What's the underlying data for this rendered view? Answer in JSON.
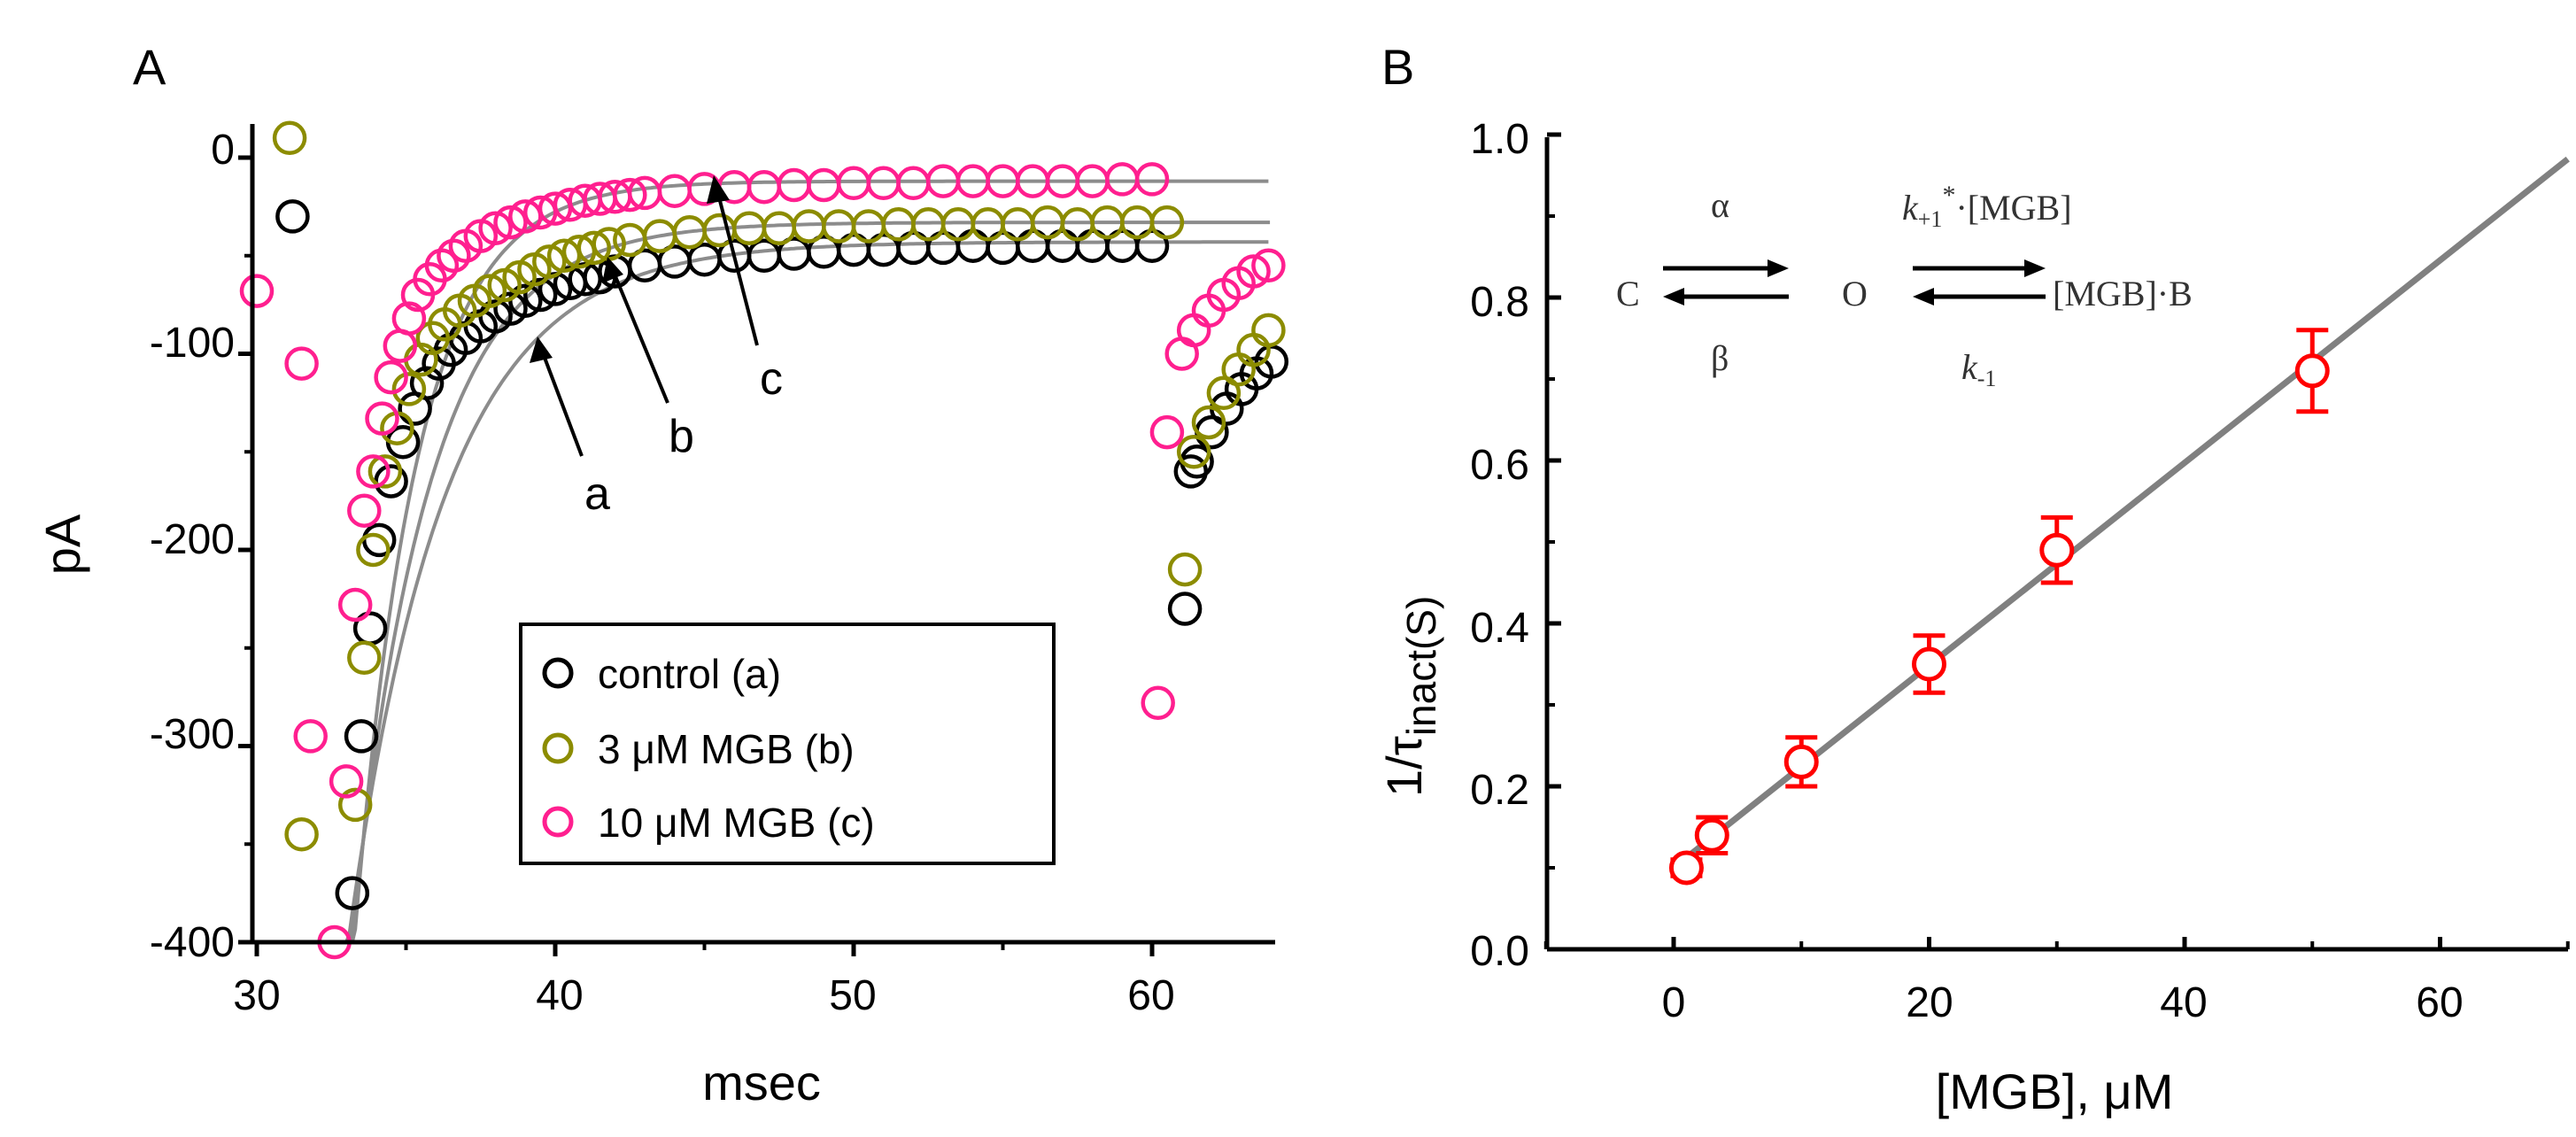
{
  "colors": {
    "control": "#000000",
    "mgb3": "#8c8c00",
    "mgb10": "#ff1f8f",
    "fit": "#8c8c8c",
    "panelB_points": "#ff0000",
    "panelB_line": "#808080"
  },
  "chart_data": [
    {
      "panel_label": "A",
      "type": "scatter",
      "xlabel": "msec",
      "ylabel": "pA",
      "xlim": [
        30,
        64
      ],
      "ylim": [
        -400,
        10
      ],
      "xticks": [
        30,
        40,
        50,
        60
      ],
      "yticks": [
        0,
        -100,
        -200,
        -300,
        -400
      ],
      "xtick_labels": [
        "30",
        "40",
        "50",
        "60"
      ],
      "ytick_labels": [
        "0",
        "-100",
        "-200",
        "-300",
        "-400"
      ],
      "series": [
        {
          "name": "control (a)",
          "color_key": "control",
          "x": [
            31.2,
            33.2,
            33.5,
            33.8,
            34.1,
            34.5,
            34.9,
            35.3,
            35.7,
            36.1,
            36.5,
            37,
            37.5,
            38,
            38.5,
            39,
            39.5,
            40,
            40.5,
            41,
            41.5,
            42,
            43,
            44,
            45,
            46,
            47,
            48,
            49,
            50,
            51,
            52,
            53,
            54,
            55,
            56,
            57,
            58,
            59,
            60,
            61.3,
            61.1,
            61.5,
            62,
            62.5,
            63,
            63.5,
            64
          ],
          "y": [
            -30,
            -375,
            -295,
            -240,
            -195,
            -165,
            -145,
            -128,
            -115,
            -105,
            -98,
            -92,
            -86,
            -81,
            -77,
            -73,
            -70,
            -67,
            -64,
            -62,
            -61,
            -58,
            -55,
            -53,
            -52,
            -50,
            -50,
            -49,
            -48,
            -47,
            -47,
            -46,
            -46,
            -45,
            -46,
            -45,
            -45,
            -45,
            -45,
            -45,
            -160,
            -230,
            -155,
            -140,
            -128,
            -118,
            -110,
            -104
          ]
        },
        {
          "name": "3 μM MGB (b)",
          "color_key": "mgb3",
          "x": [
            31.1,
            31.5,
            33.3,
            33.6,
            33.9,
            34.3,
            34.7,
            35.1,
            35.5,
            35.9,
            36.3,
            36.8,
            37.3,
            37.8,
            38.3,
            38.8,
            39.3,
            39.8,
            40.3,
            40.8,
            41.3,
            41.8,
            42.5,
            43.5,
            44.5,
            45.5,
            46.5,
            47.5,
            48.5,
            49.5,
            50.5,
            51.5,
            52.5,
            53.5,
            54.5,
            55.5,
            56.5,
            57.5,
            58.5,
            59.5,
            60.5,
            61.1,
            61.4,
            61.9,
            62.4,
            62.9,
            63.4,
            63.9
          ],
          "y": [
            10,
            -345,
            -330,
            -255,
            -200,
            -160,
            -138,
            -118,
            -103,
            -92,
            -85,
            -78,
            -73,
            -68,
            -65,
            -61,
            -57,
            -53,
            -50,
            -48,
            -46,
            -44,
            -42,
            -40,
            -38,
            -37,
            -36,
            -36,
            -35,
            -35,
            -35,
            -34,
            -34,
            -34,
            -34,
            -34,
            -33,
            -34,
            -33,
            -33,
            -33,
            -210,
            -150,
            -135,
            -120,
            -108,
            -98,
            -88
          ]
        },
        {
          "name": "10 μM MGB (c)",
          "color_key": "mgb10",
          "x": [
            30,
            31.5,
            31.8,
            32.6,
            33.0,
            33.3,
            33.6,
            33.9,
            34.2,
            34.5,
            34.8,
            35.1,
            35.4,
            35.8,
            36.2,
            36.6,
            37,
            37.5,
            38,
            38.5,
            39,
            39.5,
            40,
            40.5,
            41,
            41.5,
            42,
            42.5,
            43,
            44,
            45,
            46,
            47,
            48,
            49,
            50,
            51,
            52,
            53,
            54,
            55,
            56,
            57,
            58,
            59,
            60,
            60.2,
            60.5,
            61,
            61.4,
            61.9,
            62.4,
            62.9,
            63.4,
            63.9
          ],
          "y": [
            -68,
            -105,
            -295,
            -400,
            -318,
            -228,
            -180,
            -160,
            -133,
            -112,
            -96,
            -82,
            -70,
            -62,
            -55,
            -50,
            -45,
            -40,
            -36,
            -33,
            -30,
            -28,
            -26,
            -24,
            -22,
            -21,
            -20,
            -19,
            -18,
            -17,
            -16,
            -15,
            -15,
            -14,
            -14,
            -13,
            -13,
            -13,
            -12,
            -12,
            -12,
            -12,
            -12,
            -12,
            -11,
            -11,
            -278,
            -140,
            -100,
            -88,
            -78,
            -70,
            -64,
            -58,
            -55
          ]
        }
      ],
      "fits": [
        {
          "name": "fit a",
          "start_x": 32.7,
          "A": 400,
          "tau": 3.2,
          "C": -43
        },
        {
          "name": "fit b",
          "start_x": 32.95,
          "A": 400,
          "tau": 2.6,
          "C": -33
        },
        {
          "name": "fit c",
          "start_x": 33.2,
          "A": 400,
          "tau": 2.1,
          "C": -12
        }
      ],
      "annotations": [
        {
          "label": "a",
          "x": 39.1,
          "y": -140
        },
        {
          "label": "b",
          "x": 41.2,
          "y": -105
        },
        {
          "label": "c",
          "x": 46.5,
          "y": -70
        }
      ],
      "legend": {
        "placement": "bottom-right",
        "entries": [
          "control (a)",
          "3 μM MGB (b)",
          "10 μM MGB (c)"
        ]
      }
    },
    {
      "panel_label": "B",
      "type": "scatter",
      "xlabel": "[MGB], μM",
      "ylabel_main": "1/τ",
      "ylabel_sub": "inact(S)",
      "xlim": [
        -10,
        70
      ],
      "ylim": [
        0,
        1
      ],
      "xticks": [
        0,
        20,
        40,
        60
      ],
      "yticks": [
        0,
        0.2,
        0.4,
        0.6,
        0.8,
        1.0
      ],
      "xtick_labels": [
        "0",
        "20",
        "40",
        "60"
      ],
      "ytick_labels": [
        "0.0",
        "0.2",
        "0.4",
        "0.6",
        "0.8",
        "1.0"
      ],
      "points": {
        "x": [
          1,
          3,
          10,
          20,
          30,
          50
        ],
        "y": [
          0.1,
          0.14,
          0.23,
          0.35,
          0.49,
          0.71
        ],
        "err": [
          0.01,
          0.022,
          0.03,
          0.035,
          0.04,
          0.05
        ]
      },
      "line": {
        "x0": 0,
        "y0": 0.1,
        "x1": 70,
        "y1": 0.97
      },
      "scheme": {
        "C": "C",
        "O": "O",
        "MGB_B": "[MGB]·B",
        "alpha": "α",
        "beta": "β",
        "k_plus_main": "k",
        "k_plus_sub": "+1",
        "k_plus_sup": "*",
        "k_plus_tail": "·[MGB]",
        "k_minus_main": "k",
        "k_minus_sub": "-1"
      }
    }
  ]
}
